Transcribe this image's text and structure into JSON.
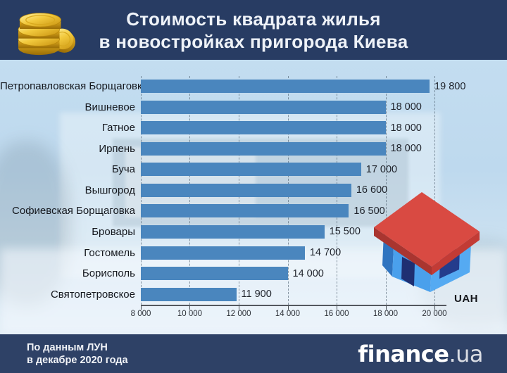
{
  "header": {
    "title_line1": "Стоимость квадрата жилья",
    "title_line2": "в новостройках пригорода Киева"
  },
  "chart_data": {
    "type": "bar",
    "orientation": "horizontal",
    "title": "Стоимость квадрата жилья в новостройках пригорода Киева",
    "categories": [
      "Петропавловская Борщаговка",
      "Вишневое",
      "Гатное",
      "Ирпень",
      "Буча",
      "Вышгород",
      "Софиевская Борщаговка",
      "Бровары",
      "Гостомель",
      "Борисполь",
      "Святопетровское"
    ],
    "values": [
      19800,
      18000,
      18000,
      18000,
      17000,
      16600,
      16500,
      15500,
      14700,
      14000,
      11900
    ],
    "value_labels": [
      "19 800",
      "18 000",
      "18 000",
      "18 000",
      "17 000",
      "16 600",
      "16 500",
      "15 500",
      "14 700",
      "14 000",
      "11 900"
    ],
    "xlabel": "UAH",
    "xlim": [
      8000,
      20000
    ],
    "x_ticks": [
      "8 000",
      "10 000",
      "12 000",
      "14 000",
      "16 000",
      "18 000",
      "20 000"
    ],
    "grid": "vertical-dashed",
    "legend": "none",
    "bar_color": "#4a86be"
  },
  "footer": {
    "source_line1": "По данным ЛУН",
    "source_line2": "в декабре 2020 года",
    "logo_main": "finance",
    "logo_suffix": ".ua"
  },
  "icons": {
    "header_icon": "gold-coins-icon",
    "chart_icon": "house-icon"
  },
  "colors": {
    "header_navy": "#283c63",
    "footer_navy": "#2e4166",
    "bar_blue": "#4a86be",
    "chart_bg": "#c0dbee",
    "house_roof_red": "#d94a42",
    "house_wall_blue": "#4aa0ec",
    "house_window_navy": "#243c8c",
    "coin_gold": "#f2c93d"
  }
}
